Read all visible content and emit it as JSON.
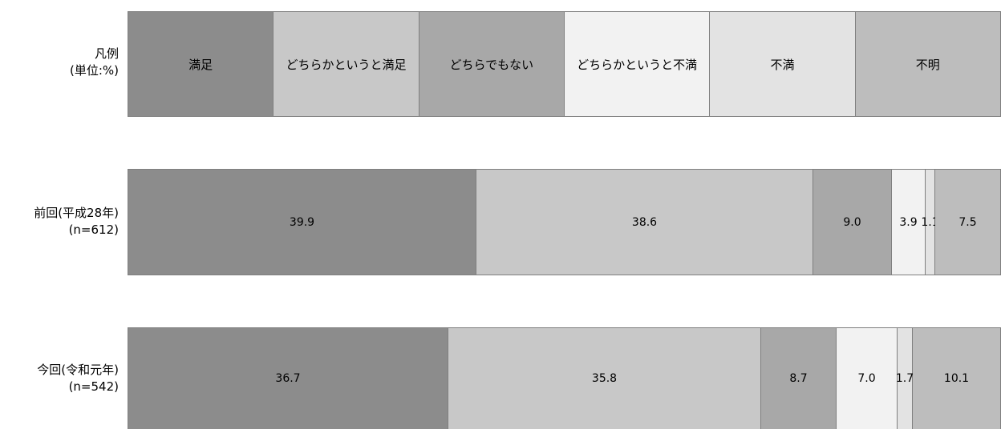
{
  "chart_data": {
    "type": "bar",
    "stacked": true,
    "orientation": "horizontal",
    "legend_title": [
      "凡例",
      "(単位:%)"
    ],
    "series": [
      {
        "name": "満足",
        "color": "#8c8c8c"
      },
      {
        "name": "どちらかというと満足",
        "color": "#c8c8c8"
      },
      {
        "name": "どちらでもない",
        "color": "#a8a8a8"
      },
      {
        "name": "どちらかというと不満",
        "color": "#f2f2f2"
      },
      {
        "name": "不満",
        "color": "#e3e3e3"
      },
      {
        "name": "不明",
        "color": "#bdbdbd"
      }
    ],
    "rows": [
      {
        "label_line1": "前回(平成28年)",
        "label_line2": "(n=612)",
        "values": [
          39.9,
          38.6,
          9.0,
          3.9,
          1.1,
          7.5
        ],
        "value_labels": [
          "39.9",
          "38.6",
          "9.0",
          "3.9",
          "1.1",
          "7.5"
        ]
      },
      {
        "label_line1": "今回(令和元年)",
        "label_line2": "(n=542)",
        "values": [
          36.7,
          35.8,
          8.7,
          7.0,
          1.7,
          10.1
        ],
        "value_labels": [
          "36.7",
          "35.8",
          "8.7",
          "7.0",
          "1.7",
          "10.1"
        ]
      }
    ],
    "xlim": [
      0,
      100
    ],
    "unit": "%"
  }
}
